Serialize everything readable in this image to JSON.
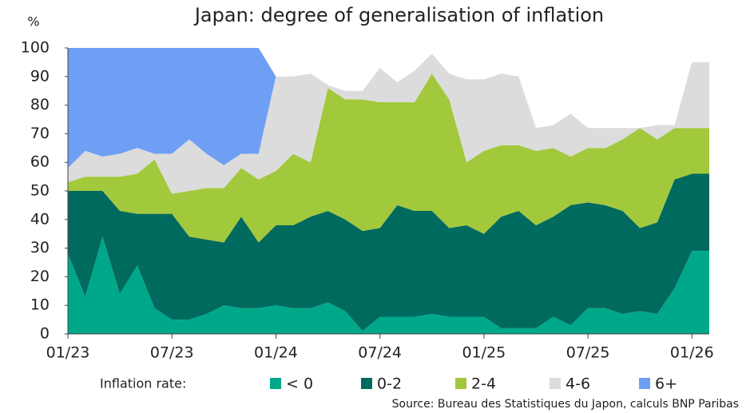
{
  "chart_data": {
    "type": "area",
    "stacked": true,
    "title": "Japan: degree of generalisation of inflation",
    "y_label": "%",
    "legend_title": "Inflation rate:",
    "source": "Source: Bureau des Statistiques du Japon, calculs BNP Paribas",
    "categories": [
      "01/23",
      null,
      null,
      null,
      null,
      null,
      "07/23",
      null,
      null,
      null,
      null,
      null,
      "01/24",
      null,
      null,
      null,
      null,
      null,
      "07/24",
      null,
      null,
      null,
      null,
      null,
      "01/25",
      null,
      null,
      null,
      null,
      null,
      "07/25",
      null,
      null,
      null,
      null,
      null,
      "01/26",
      null
    ],
    "ylim": [
      0,
      100
    ],
    "yticks": [
      0,
      10,
      20,
      30,
      40,
      50,
      60,
      70,
      80,
      90,
      100
    ],
    "series": [
      {
        "name": "< 0",
        "color": "#00a88a",
        "values": [
          28,
          13,
          34,
          14,
          24,
          9,
          5,
          5,
          7,
          10,
          9,
          9,
          10,
          9,
          9,
          11,
          8,
          1,
          6,
          6,
          6,
          7,
          6,
          6,
          6,
          2,
          2,
          2,
          6,
          3,
          9,
          9,
          7,
          8,
          7,
          16,
          29,
          29
        ]
      },
      {
        "name": "0-2",
        "color": "#006a5e",
        "values": [
          22,
          37,
          16,
          29,
          18,
          33,
          37,
          29,
          26,
          22,
          32,
          23,
          28,
          29,
          32,
          32,
          32,
          35,
          31,
          39,
          37,
          36,
          31,
          32,
          29,
          39,
          41,
          36,
          35,
          42,
          37,
          36,
          36,
          29,
          32,
          38,
          27,
          27
        ]
      },
      {
        "name": "2-4",
        "color": "#a2c83c",
        "values": [
          3,
          5,
          5,
          12,
          14,
          19,
          7,
          16,
          18,
          19,
          17,
          22,
          19,
          25,
          19,
          43,
          42,
          46,
          44,
          36,
          38,
          48,
          45,
          22,
          29,
          25,
          23,
          26,
          24,
          17,
          19,
          20,
          25,
          35,
          29,
          18,
          16,
          16
        ]
      },
      {
        "name": "4-6",
        "color": "#dcdcdc",
        "values": [
          5,
          9,
          7,
          8,
          9,
          2,
          14,
          18,
          12,
          8,
          5,
          9,
          33,
          27,
          31,
          1,
          3,
          3,
          12,
          7,
          11,
          7,
          9,
          29,
          25,
          25,
          24,
          8,
          8,
          15,
          7,
          7,
          4,
          0,
          5,
          1,
          23,
          23
        ]
      },
      {
        "name": "6+",
        "color": "#6f9ff5",
        "values": [
          42,
          36,
          38,
          37,
          35,
          37,
          37,
          32,
          37,
          41,
          37,
          37,
          0,
          0,
          0,
          0,
          0,
          0,
          0,
          0,
          0,
          0,
          0,
          0,
          0,
          0,
          0,
          0,
          0,
          0,
          0,
          0,
          0,
          0,
          0,
          0,
          0,
          0
        ]
      }
    ]
  }
}
